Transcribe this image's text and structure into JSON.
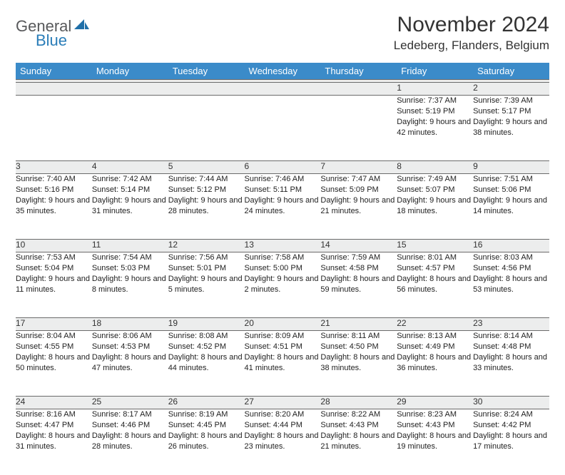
{
  "brand": {
    "text1": "General",
    "text2": "Blue"
  },
  "title": "November 2024",
  "location": "Ledeberg, Flanders, Belgium",
  "colors": {
    "header_bg": "#3b8bc9",
    "header_text": "#ffffff",
    "daynum_bg": "#eceded",
    "border": "#6b6b6b",
    "logo_gray": "#58595b",
    "logo_blue": "#2a7db8"
  },
  "weekdays": [
    "Sunday",
    "Monday",
    "Tuesday",
    "Wednesday",
    "Thursday",
    "Friday",
    "Saturday"
  ],
  "weeks": [
    [
      null,
      null,
      null,
      null,
      null,
      {
        "n": "1",
        "sunrise": "7:37 AM",
        "sunset": "5:19 PM",
        "daylight": "9 hours and 42 minutes."
      },
      {
        "n": "2",
        "sunrise": "7:39 AM",
        "sunset": "5:17 PM",
        "daylight": "9 hours and 38 minutes."
      }
    ],
    [
      {
        "n": "3",
        "sunrise": "7:40 AM",
        "sunset": "5:16 PM",
        "daylight": "9 hours and 35 minutes."
      },
      {
        "n": "4",
        "sunrise": "7:42 AM",
        "sunset": "5:14 PM",
        "daylight": "9 hours and 31 minutes."
      },
      {
        "n": "5",
        "sunrise": "7:44 AM",
        "sunset": "5:12 PM",
        "daylight": "9 hours and 28 minutes."
      },
      {
        "n": "6",
        "sunrise": "7:46 AM",
        "sunset": "5:11 PM",
        "daylight": "9 hours and 24 minutes."
      },
      {
        "n": "7",
        "sunrise": "7:47 AM",
        "sunset": "5:09 PM",
        "daylight": "9 hours and 21 minutes."
      },
      {
        "n": "8",
        "sunrise": "7:49 AM",
        "sunset": "5:07 PM",
        "daylight": "9 hours and 18 minutes."
      },
      {
        "n": "9",
        "sunrise": "7:51 AM",
        "sunset": "5:06 PM",
        "daylight": "9 hours and 14 minutes."
      }
    ],
    [
      {
        "n": "10",
        "sunrise": "7:53 AM",
        "sunset": "5:04 PM",
        "daylight": "9 hours and 11 minutes."
      },
      {
        "n": "11",
        "sunrise": "7:54 AM",
        "sunset": "5:03 PM",
        "daylight": "9 hours and 8 minutes."
      },
      {
        "n": "12",
        "sunrise": "7:56 AM",
        "sunset": "5:01 PM",
        "daylight": "9 hours and 5 minutes."
      },
      {
        "n": "13",
        "sunrise": "7:58 AM",
        "sunset": "5:00 PM",
        "daylight": "9 hours and 2 minutes."
      },
      {
        "n": "14",
        "sunrise": "7:59 AM",
        "sunset": "4:58 PM",
        "daylight": "8 hours and 59 minutes."
      },
      {
        "n": "15",
        "sunrise": "8:01 AM",
        "sunset": "4:57 PM",
        "daylight": "8 hours and 56 minutes."
      },
      {
        "n": "16",
        "sunrise": "8:03 AM",
        "sunset": "4:56 PM",
        "daylight": "8 hours and 53 minutes."
      }
    ],
    [
      {
        "n": "17",
        "sunrise": "8:04 AM",
        "sunset": "4:55 PM",
        "daylight": "8 hours and 50 minutes."
      },
      {
        "n": "18",
        "sunrise": "8:06 AM",
        "sunset": "4:53 PM",
        "daylight": "8 hours and 47 minutes."
      },
      {
        "n": "19",
        "sunrise": "8:08 AM",
        "sunset": "4:52 PM",
        "daylight": "8 hours and 44 minutes."
      },
      {
        "n": "20",
        "sunrise": "8:09 AM",
        "sunset": "4:51 PM",
        "daylight": "8 hours and 41 minutes."
      },
      {
        "n": "21",
        "sunrise": "8:11 AM",
        "sunset": "4:50 PM",
        "daylight": "8 hours and 38 minutes."
      },
      {
        "n": "22",
        "sunrise": "8:13 AM",
        "sunset": "4:49 PM",
        "daylight": "8 hours and 36 minutes."
      },
      {
        "n": "23",
        "sunrise": "8:14 AM",
        "sunset": "4:48 PM",
        "daylight": "8 hours and 33 minutes."
      }
    ],
    [
      {
        "n": "24",
        "sunrise": "8:16 AM",
        "sunset": "4:47 PM",
        "daylight": "8 hours and 31 minutes."
      },
      {
        "n": "25",
        "sunrise": "8:17 AM",
        "sunset": "4:46 PM",
        "daylight": "8 hours and 28 minutes."
      },
      {
        "n": "26",
        "sunrise": "8:19 AM",
        "sunset": "4:45 PM",
        "daylight": "8 hours and 26 minutes."
      },
      {
        "n": "27",
        "sunrise": "8:20 AM",
        "sunset": "4:44 PM",
        "daylight": "8 hours and 23 minutes."
      },
      {
        "n": "28",
        "sunrise": "8:22 AM",
        "sunset": "4:43 PM",
        "daylight": "8 hours and 21 minutes."
      },
      {
        "n": "29",
        "sunrise": "8:23 AM",
        "sunset": "4:43 PM",
        "daylight": "8 hours and 19 minutes."
      },
      {
        "n": "30",
        "sunrise": "8:24 AM",
        "sunset": "4:42 PM",
        "daylight": "8 hours and 17 minutes."
      }
    ]
  ],
  "labels": {
    "sunrise": "Sunrise: ",
    "sunset": "Sunset: ",
    "daylight": "Daylight: "
  }
}
